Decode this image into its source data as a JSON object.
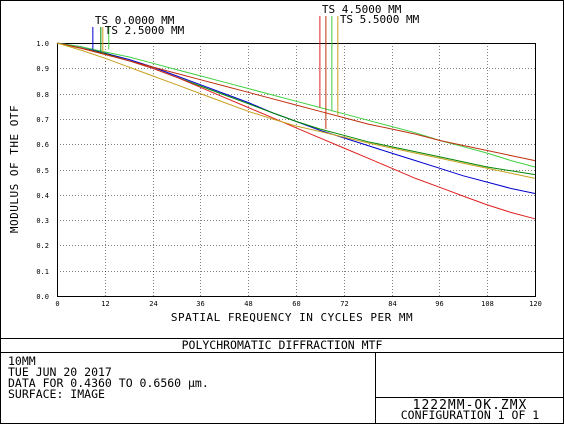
{
  "chart_data": {
    "type": "line",
    "xlabel": "SPATIAL FREQUENCY IN CYCLES PER MM",
    "ylabel": "MODULUS OF THE OTF",
    "xlim": [
      0,
      120
    ],
    "ylim": [
      0,
      1
    ],
    "x_ticks": [
      "0",
      "12",
      "24",
      "36",
      "48",
      "60",
      "72",
      "84",
      "96",
      "108",
      "120"
    ],
    "y_ticks": [
      "0.0",
      "0.1",
      "0.2",
      "0.3",
      "0.4",
      "0.5",
      "0.6",
      "0.7",
      "0.8",
      "0.9",
      "1.0"
    ],
    "grid": true,
    "x": [
      0,
      6,
      12,
      18,
      24,
      30,
      36,
      42,
      48,
      54,
      60,
      66,
      72,
      78,
      84,
      90,
      96,
      102,
      108,
      114,
      120
    ],
    "series": [
      {
        "color": "#0000cc",
        "values": [
          1.0,
          0.985,
          0.96,
          0.935,
          0.905,
          0.87,
          0.835,
          0.8,
          0.765,
          0.725,
          0.69,
          0.655,
          0.625,
          0.595,
          0.565,
          0.535,
          0.505,
          0.475,
          0.45,
          0.425,
          0.405
        ]
      },
      {
        "color": "#008800",
        "values": [
          1.0,
          0.98,
          0.958,
          0.93,
          0.9,
          0.865,
          0.83,
          0.795,
          0.76,
          0.725,
          0.69,
          0.66,
          0.635,
          0.61,
          0.59,
          0.57,
          0.55,
          0.53,
          0.51,
          0.495,
          0.48
        ]
      },
      {
        "color": "#e02020",
        "values": [
          1.0,
          0.98,
          0.955,
          0.93,
          0.9,
          0.865,
          0.825,
          0.785,
          0.745,
          0.705,
          0.665,
          0.625,
          0.585,
          0.545,
          0.505,
          0.465,
          0.43,
          0.395,
          0.36,
          0.33,
          0.305
        ]
      },
      {
        "color": "#40d040",
        "values": [
          1.0,
          0.985,
          0.965,
          0.945,
          0.92,
          0.895,
          0.87,
          0.845,
          0.82,
          0.795,
          0.77,
          0.745,
          0.72,
          0.695,
          0.67,
          0.645,
          0.615,
          0.59,
          0.565,
          0.535,
          0.51
        ]
      },
      {
        "color": "#c03010",
        "values": [
          1.0,
          0.98,
          0.955,
          0.93,
          0.905,
          0.88,
          0.855,
          0.83,
          0.805,
          0.78,
          0.755,
          0.73,
          0.705,
          0.68,
          0.66,
          0.64,
          0.615,
          0.595,
          0.575,
          0.555,
          0.535
        ]
      },
      {
        "color": "#c8a020",
        "values": [
          1.0,
          0.972,
          0.94,
          0.905,
          0.87,
          0.835,
          0.8,
          0.765,
          0.73,
          0.7,
          0.672,
          0.65,
          0.628,
          0.605,
          0.585,
          0.565,
          0.545,
          0.525,
          0.505,
          0.485,
          0.465
        ]
      }
    ],
    "markers": [
      {
        "color": "#0000cc",
        "x": 9.0,
        "y": 0.975
      },
      {
        "color": "#008800",
        "x": 11.0,
        "y": 0.968
      },
      {
        "color": "#c8a020",
        "x": 11.5,
        "y": 0.962
      },
      {
        "color": "#40d040",
        "x": 13.0,
        "y": 0.975
      },
      {
        "color": "#e02020",
        "x": 66.0,
        "y": 0.745
      },
      {
        "color": "#c03010",
        "x": 67.5,
        "y": 0.66
      },
      {
        "color": "#40d040",
        "x": 69.0,
        "y": 0.735
      },
      {
        "color": "#c8a020",
        "x": 70.5,
        "y": 0.715
      }
    ],
    "legend": [
      {
        "label": "TS 0.0000 MM",
        "anchor_x": 9.0
      },
      {
        "label": "TS 2.5000 MM",
        "anchor_x": 11.5
      },
      {
        "label": "TS 4.5000 MM",
        "anchor_x": 66.0
      },
      {
        "label": "TS 5.5000 MM",
        "anchor_x": 70.5
      }
    ]
  },
  "footer": {
    "title": "POLYCHROMATIC DIFFRACTION MTF",
    "lines": [
      "10MM",
      "TUE JUN 20 2017",
      "DATA FOR 0.4360 TO 0.6560 µm.",
      "SURFACE: IMAGE"
    ],
    "filename": "1222MM-OK.ZMX",
    "configuration": "CONFIGURATION 1 OF 1"
  }
}
